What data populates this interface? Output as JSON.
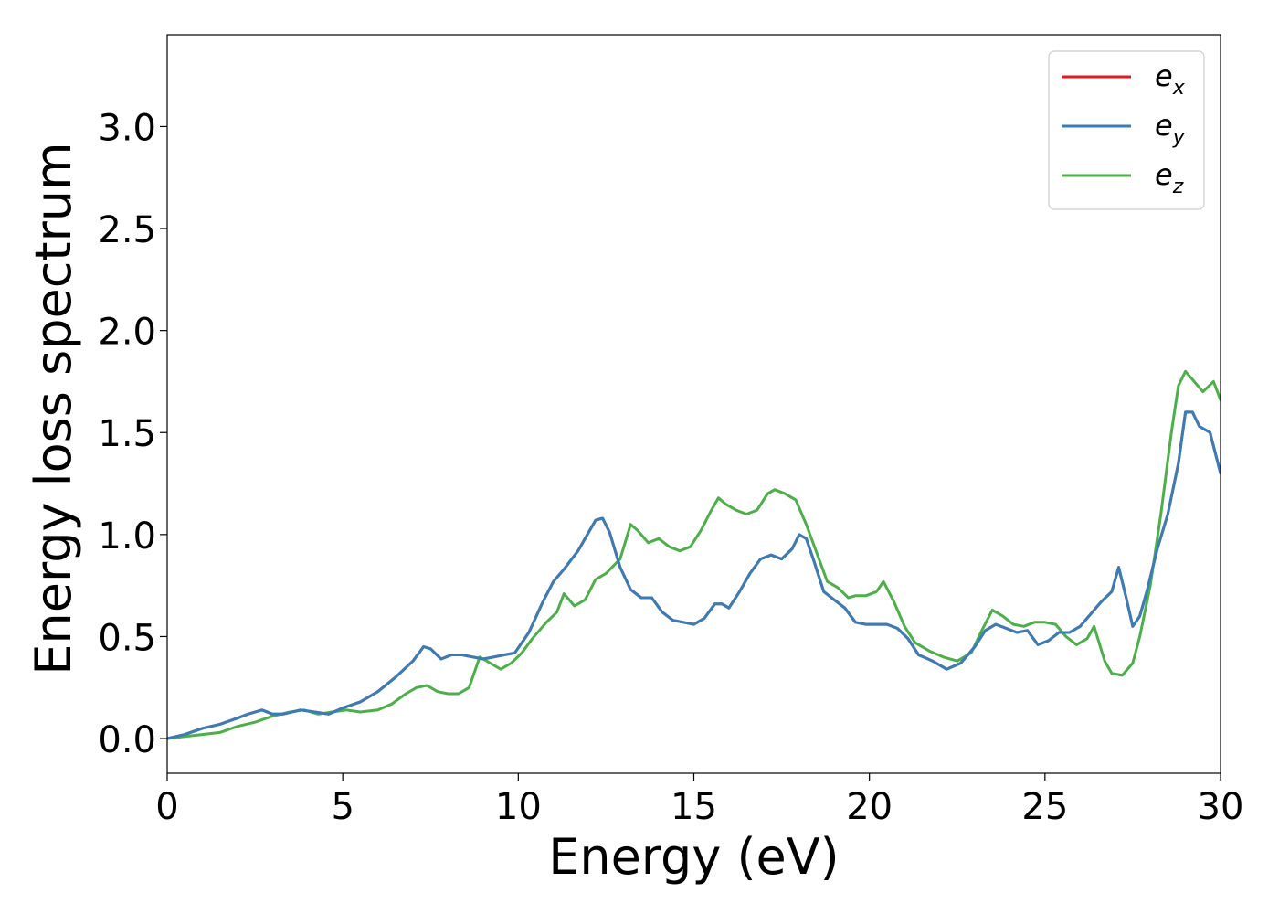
{
  "chart_data": {
    "type": "line",
    "xlabel": "Energy (eV)",
    "ylabel": "Energy loss spectrum",
    "xlim": [
      0,
      30
    ],
    "ylim": [
      -0.17,
      3.45
    ],
    "xticks": [
      0,
      5,
      10,
      15,
      20,
      25,
      30
    ],
    "xtick_labels": [
      "0",
      "5",
      "10",
      "15",
      "20",
      "25",
      "30"
    ],
    "yticks": [
      0.0,
      0.5,
      1.0,
      1.5,
      2.0,
      2.5,
      3.0
    ],
    "ytick_labels": [
      "0.0",
      "0.5",
      "1.0",
      "1.5",
      "2.0",
      "2.5",
      "3.0"
    ],
    "grid": false,
    "legend_position": "top-right",
    "series": [
      {
        "name": "e_x",
        "label_main": "e",
        "label_sub": "x",
        "color": "#e41a1c",
        "x": [
          0,
          0.5,
          1.0,
          1.5,
          2.0,
          2.3,
          2.7,
          3.0,
          3.3,
          3.8,
          4.2,
          4.6,
          5.0,
          5.5,
          6.0,
          6.5,
          7.0,
          7.3,
          7.5,
          7.8,
          8.1,
          8.4,
          8.7,
          9.0,
          9.3,
          9.6,
          9.9,
          10.3,
          10.7,
          11.0,
          11.3,
          11.7,
          12.0,
          12.2,
          12.4,
          12.6,
          12.9,
          13.2,
          13.5,
          13.8,
          14.1,
          14.4,
          14.7,
          15.0,
          15.3,
          15.6,
          15.8,
          16.0,
          16.3,
          16.6,
          16.9,
          17.2,
          17.5,
          17.8,
          18.0,
          18.2,
          18.4,
          18.7,
          19.0,
          19.3,
          19.6,
          19.9,
          20.2,
          20.5,
          20.8,
          21.1,
          21.4,
          21.8,
          22.2,
          22.6,
          23.0,
          23.3,
          23.6,
          23.9,
          24.2,
          24.5,
          24.8,
          25.1,
          25.4,
          25.7,
          26.0,
          26.3,
          26.6,
          26.9,
          27.1,
          27.3,
          27.5,
          27.7,
          27.9,
          28.2,
          28.5,
          28.8,
          29.0,
          29.2,
          29.4,
          29.7,
          30.0
        ],
        "y": [
          0.0,
          0.02,
          0.05,
          0.07,
          0.1,
          0.12,
          0.14,
          0.12,
          0.12,
          0.14,
          0.13,
          0.12,
          0.15,
          0.18,
          0.23,
          0.3,
          0.38,
          0.45,
          0.44,
          0.39,
          0.41,
          0.41,
          0.4,
          0.39,
          0.4,
          0.41,
          0.42,
          0.52,
          0.67,
          0.77,
          0.83,
          0.92,
          1.01,
          1.07,
          1.08,
          1.01,
          0.84,
          0.73,
          0.69,
          0.69,
          0.62,
          0.58,
          0.57,
          0.56,
          0.59,
          0.66,
          0.66,
          0.64,
          0.72,
          0.81,
          0.88,
          0.9,
          0.88,
          0.93,
          1.0,
          0.98,
          0.88,
          0.72,
          0.68,
          0.64,
          0.57,
          0.56,
          0.56,
          0.56,
          0.54,
          0.49,
          0.41,
          0.38,
          0.34,
          0.37,
          0.45,
          0.53,
          0.56,
          0.54,
          0.52,
          0.53,
          0.46,
          0.48,
          0.52,
          0.52,
          0.55,
          0.61,
          0.67,
          0.72,
          0.84,
          0.7,
          0.55,
          0.6,
          0.72,
          0.93,
          1.1,
          1.35,
          1.6,
          1.6,
          1.53,
          1.5,
          1.3
        ]
      },
      {
        "name": "e_y",
        "label_main": "e",
        "label_sub": "y",
        "color": "#377eb8",
        "x": [
          0,
          0.5,
          1.0,
          1.5,
          2.0,
          2.3,
          2.7,
          3.0,
          3.3,
          3.8,
          4.2,
          4.6,
          5.0,
          5.5,
          6.0,
          6.5,
          7.0,
          7.3,
          7.5,
          7.8,
          8.1,
          8.4,
          8.7,
          9.0,
          9.3,
          9.6,
          9.9,
          10.3,
          10.7,
          11.0,
          11.3,
          11.7,
          12.0,
          12.2,
          12.4,
          12.6,
          12.9,
          13.2,
          13.5,
          13.8,
          14.1,
          14.4,
          14.7,
          15.0,
          15.3,
          15.6,
          15.8,
          16.0,
          16.3,
          16.6,
          16.9,
          17.2,
          17.5,
          17.8,
          18.0,
          18.2,
          18.4,
          18.7,
          19.0,
          19.3,
          19.6,
          19.9,
          20.2,
          20.5,
          20.8,
          21.1,
          21.4,
          21.8,
          22.2,
          22.6,
          23.0,
          23.3,
          23.6,
          23.9,
          24.2,
          24.5,
          24.8,
          25.1,
          25.4,
          25.7,
          26.0,
          26.3,
          26.6,
          26.9,
          27.1,
          27.3,
          27.5,
          27.7,
          27.9,
          28.2,
          28.5,
          28.8,
          29.0,
          29.2,
          29.4,
          29.7,
          30.0
        ],
        "y": [
          0.0,
          0.02,
          0.05,
          0.07,
          0.1,
          0.12,
          0.14,
          0.12,
          0.12,
          0.14,
          0.13,
          0.12,
          0.15,
          0.18,
          0.23,
          0.3,
          0.38,
          0.45,
          0.44,
          0.39,
          0.41,
          0.41,
          0.4,
          0.39,
          0.4,
          0.41,
          0.42,
          0.52,
          0.67,
          0.77,
          0.83,
          0.92,
          1.01,
          1.07,
          1.08,
          1.01,
          0.84,
          0.73,
          0.69,
          0.69,
          0.62,
          0.58,
          0.57,
          0.56,
          0.59,
          0.66,
          0.66,
          0.64,
          0.72,
          0.81,
          0.88,
          0.9,
          0.88,
          0.93,
          1.0,
          0.98,
          0.88,
          0.72,
          0.68,
          0.64,
          0.57,
          0.56,
          0.56,
          0.56,
          0.54,
          0.49,
          0.41,
          0.38,
          0.34,
          0.37,
          0.45,
          0.53,
          0.56,
          0.54,
          0.52,
          0.53,
          0.46,
          0.48,
          0.52,
          0.52,
          0.55,
          0.61,
          0.67,
          0.72,
          0.84,
          0.7,
          0.55,
          0.6,
          0.72,
          0.93,
          1.1,
          1.35,
          1.6,
          1.6,
          1.53,
          1.5,
          1.3
        ]
      },
      {
        "name": "e_z",
        "label_main": "e",
        "label_sub": "z",
        "color": "#4daf4a",
        "x": [
          0,
          0.5,
          1.0,
          1.5,
          2.0,
          2.5,
          3.0,
          3.5,
          3.9,
          4.3,
          4.7,
          5.1,
          5.5,
          6.0,
          6.4,
          6.8,
          7.1,
          7.4,
          7.7,
          8.0,
          8.3,
          8.6,
          8.9,
          9.2,
          9.5,
          9.8,
          10.1,
          10.4,
          10.8,
          11.1,
          11.3,
          11.6,
          11.9,
          12.2,
          12.5,
          12.9,
          13.2,
          13.4,
          13.7,
          14.0,
          14.3,
          14.6,
          14.9,
          15.2,
          15.5,
          15.7,
          15.9,
          16.2,
          16.5,
          16.8,
          17.1,
          17.3,
          17.6,
          17.9,
          18.2,
          18.5,
          18.8,
          19.1,
          19.4,
          19.6,
          19.9,
          20.2,
          20.4,
          20.7,
          21.0,
          21.3,
          21.7,
          22.1,
          22.5,
          22.9,
          23.2,
          23.5,
          23.8,
          24.1,
          24.4,
          24.7,
          25.0,
          25.3,
          25.6,
          25.9,
          26.2,
          26.4,
          26.7,
          26.9,
          27.2,
          27.5,
          27.7,
          28.0,
          28.3,
          28.6,
          28.8,
          29.0,
          29.2,
          29.5,
          29.8,
          30.0
        ],
        "y": [
          0.0,
          0.01,
          0.02,
          0.03,
          0.06,
          0.08,
          0.11,
          0.13,
          0.14,
          0.12,
          0.13,
          0.14,
          0.13,
          0.14,
          0.17,
          0.22,
          0.25,
          0.26,
          0.23,
          0.22,
          0.22,
          0.25,
          0.4,
          0.37,
          0.34,
          0.37,
          0.42,
          0.49,
          0.57,
          0.62,
          0.71,
          0.65,
          0.68,
          0.78,
          0.81,
          0.88,
          1.05,
          1.02,
          0.96,
          0.98,
          0.94,
          0.92,
          0.94,
          1.02,
          1.12,
          1.18,
          1.15,
          1.12,
          1.1,
          1.12,
          1.2,
          1.22,
          1.2,
          1.17,
          1.05,
          0.91,
          0.77,
          0.74,
          0.69,
          0.7,
          0.7,
          0.72,
          0.77,
          0.67,
          0.55,
          0.47,
          0.43,
          0.4,
          0.38,
          0.42,
          0.53,
          0.63,
          0.6,
          0.56,
          0.55,
          0.57,
          0.57,
          0.56,
          0.5,
          0.46,
          0.49,
          0.55,
          0.38,
          0.32,
          0.31,
          0.37,
          0.5,
          0.75,
          1.1,
          1.5,
          1.73,
          1.8,
          1.76,
          1.7,
          1.75,
          1.66
        ]
      }
    ]
  }
}
